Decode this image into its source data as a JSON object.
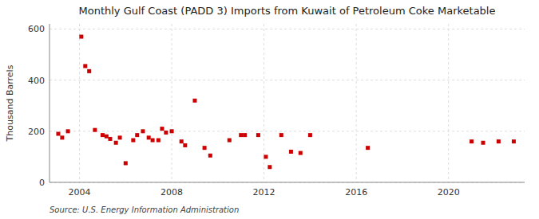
{
  "chart_data": {
    "type": "scatter",
    "title": "Monthly Gulf Coast (PADD 3) Imports from Kuwait of Petroleum Coke Marketable",
    "ylabel": "Thousand Barrels",
    "source": "Source: U.S. Energy Information Administration",
    "color": "#cc0000",
    "marker": "square",
    "grid": true,
    "xlim": [
      2002.7,
      2023.3
    ],
    "ylim": [
      0,
      620
    ],
    "xticks": [
      2004,
      2008,
      2012,
      2016,
      2020
    ],
    "yticks": [
      0,
      200,
      400,
      600
    ],
    "x": [
      2003.08,
      2003.25,
      2003.5,
      2004.08,
      2004.25,
      2004.42,
      2004.67,
      2005.0,
      2005.17,
      2005.33,
      2005.58,
      2005.75,
      2006.0,
      2006.33,
      2006.5,
      2006.75,
      2007.0,
      2007.17,
      2007.42,
      2007.58,
      2007.75,
      2008.0,
      2008.42,
      2008.58,
      2009.0,
      2009.42,
      2009.67,
      2010.5,
      2011.0,
      2011.17,
      2011.75,
      2012.08,
      2012.25,
      2012.75,
      2013.17,
      2013.58,
      2014.0,
      2016.5,
      2021.0,
      2021.5,
      2022.17,
      2022.83
    ],
    "values": [
      190,
      175,
      200,
      570,
      455,
      435,
      205,
      185,
      180,
      170,
      155,
      175,
      75,
      165,
      185,
      200,
      175,
      165,
      165,
      210,
      195,
      200,
      160,
      145,
      320,
      135,
      105,
      165,
      185,
      185,
      185,
      100,
      60,
      185,
      120,
      115,
      185,
      135,
      160,
      155,
      160,
      160
    ]
  }
}
